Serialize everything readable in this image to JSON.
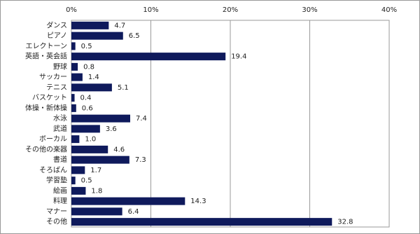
{
  "chart_data": {
    "type": "barh",
    "categories": [
      "ダンス",
      "ピアノ",
      "エレクトーン",
      "英語・英会話",
      "野球",
      "サッカー",
      "テニス",
      "バスケット",
      "体操・新体操",
      "水泳",
      "武道",
      "ボーカル",
      "その他の楽器",
      "書道",
      "そろばん",
      "学習塾",
      "絵画",
      "料理",
      "マナー",
      "その他"
    ],
    "values": [
      4.7,
      6.5,
      0.5,
      19.4,
      0.8,
      1.4,
      5.1,
      0.4,
      0.6,
      7.4,
      3.6,
      1.0,
      4.6,
      7.3,
      1.7,
      0.5,
      1.8,
      14.3,
      6.4,
      32.8
    ],
    "value_labels": [
      "4.7",
      "6.5",
      "0.5",
      "19.4",
      "0.8",
      "1.4",
      "5.1",
      "0.4",
      "0.6",
      "7.4",
      "3.6",
      "1.0",
      "4.6",
      "7.3",
      "1.7",
      "0.5",
      "1.8",
      "14.3",
      "6.4",
      "32.8"
    ],
    "color": "#0f1a5c",
    "xlim": [
      0,
      40
    ],
    "xticks": [
      {
        "value": 0,
        "label": "0%"
      },
      {
        "value": 10,
        "label": "10%"
      },
      {
        "value": 20,
        "label": "20%"
      },
      {
        "value": 30,
        "label": "30%"
      },
      {
        "value": 40,
        "label": "40%"
      }
    ],
    "grid": true
  }
}
